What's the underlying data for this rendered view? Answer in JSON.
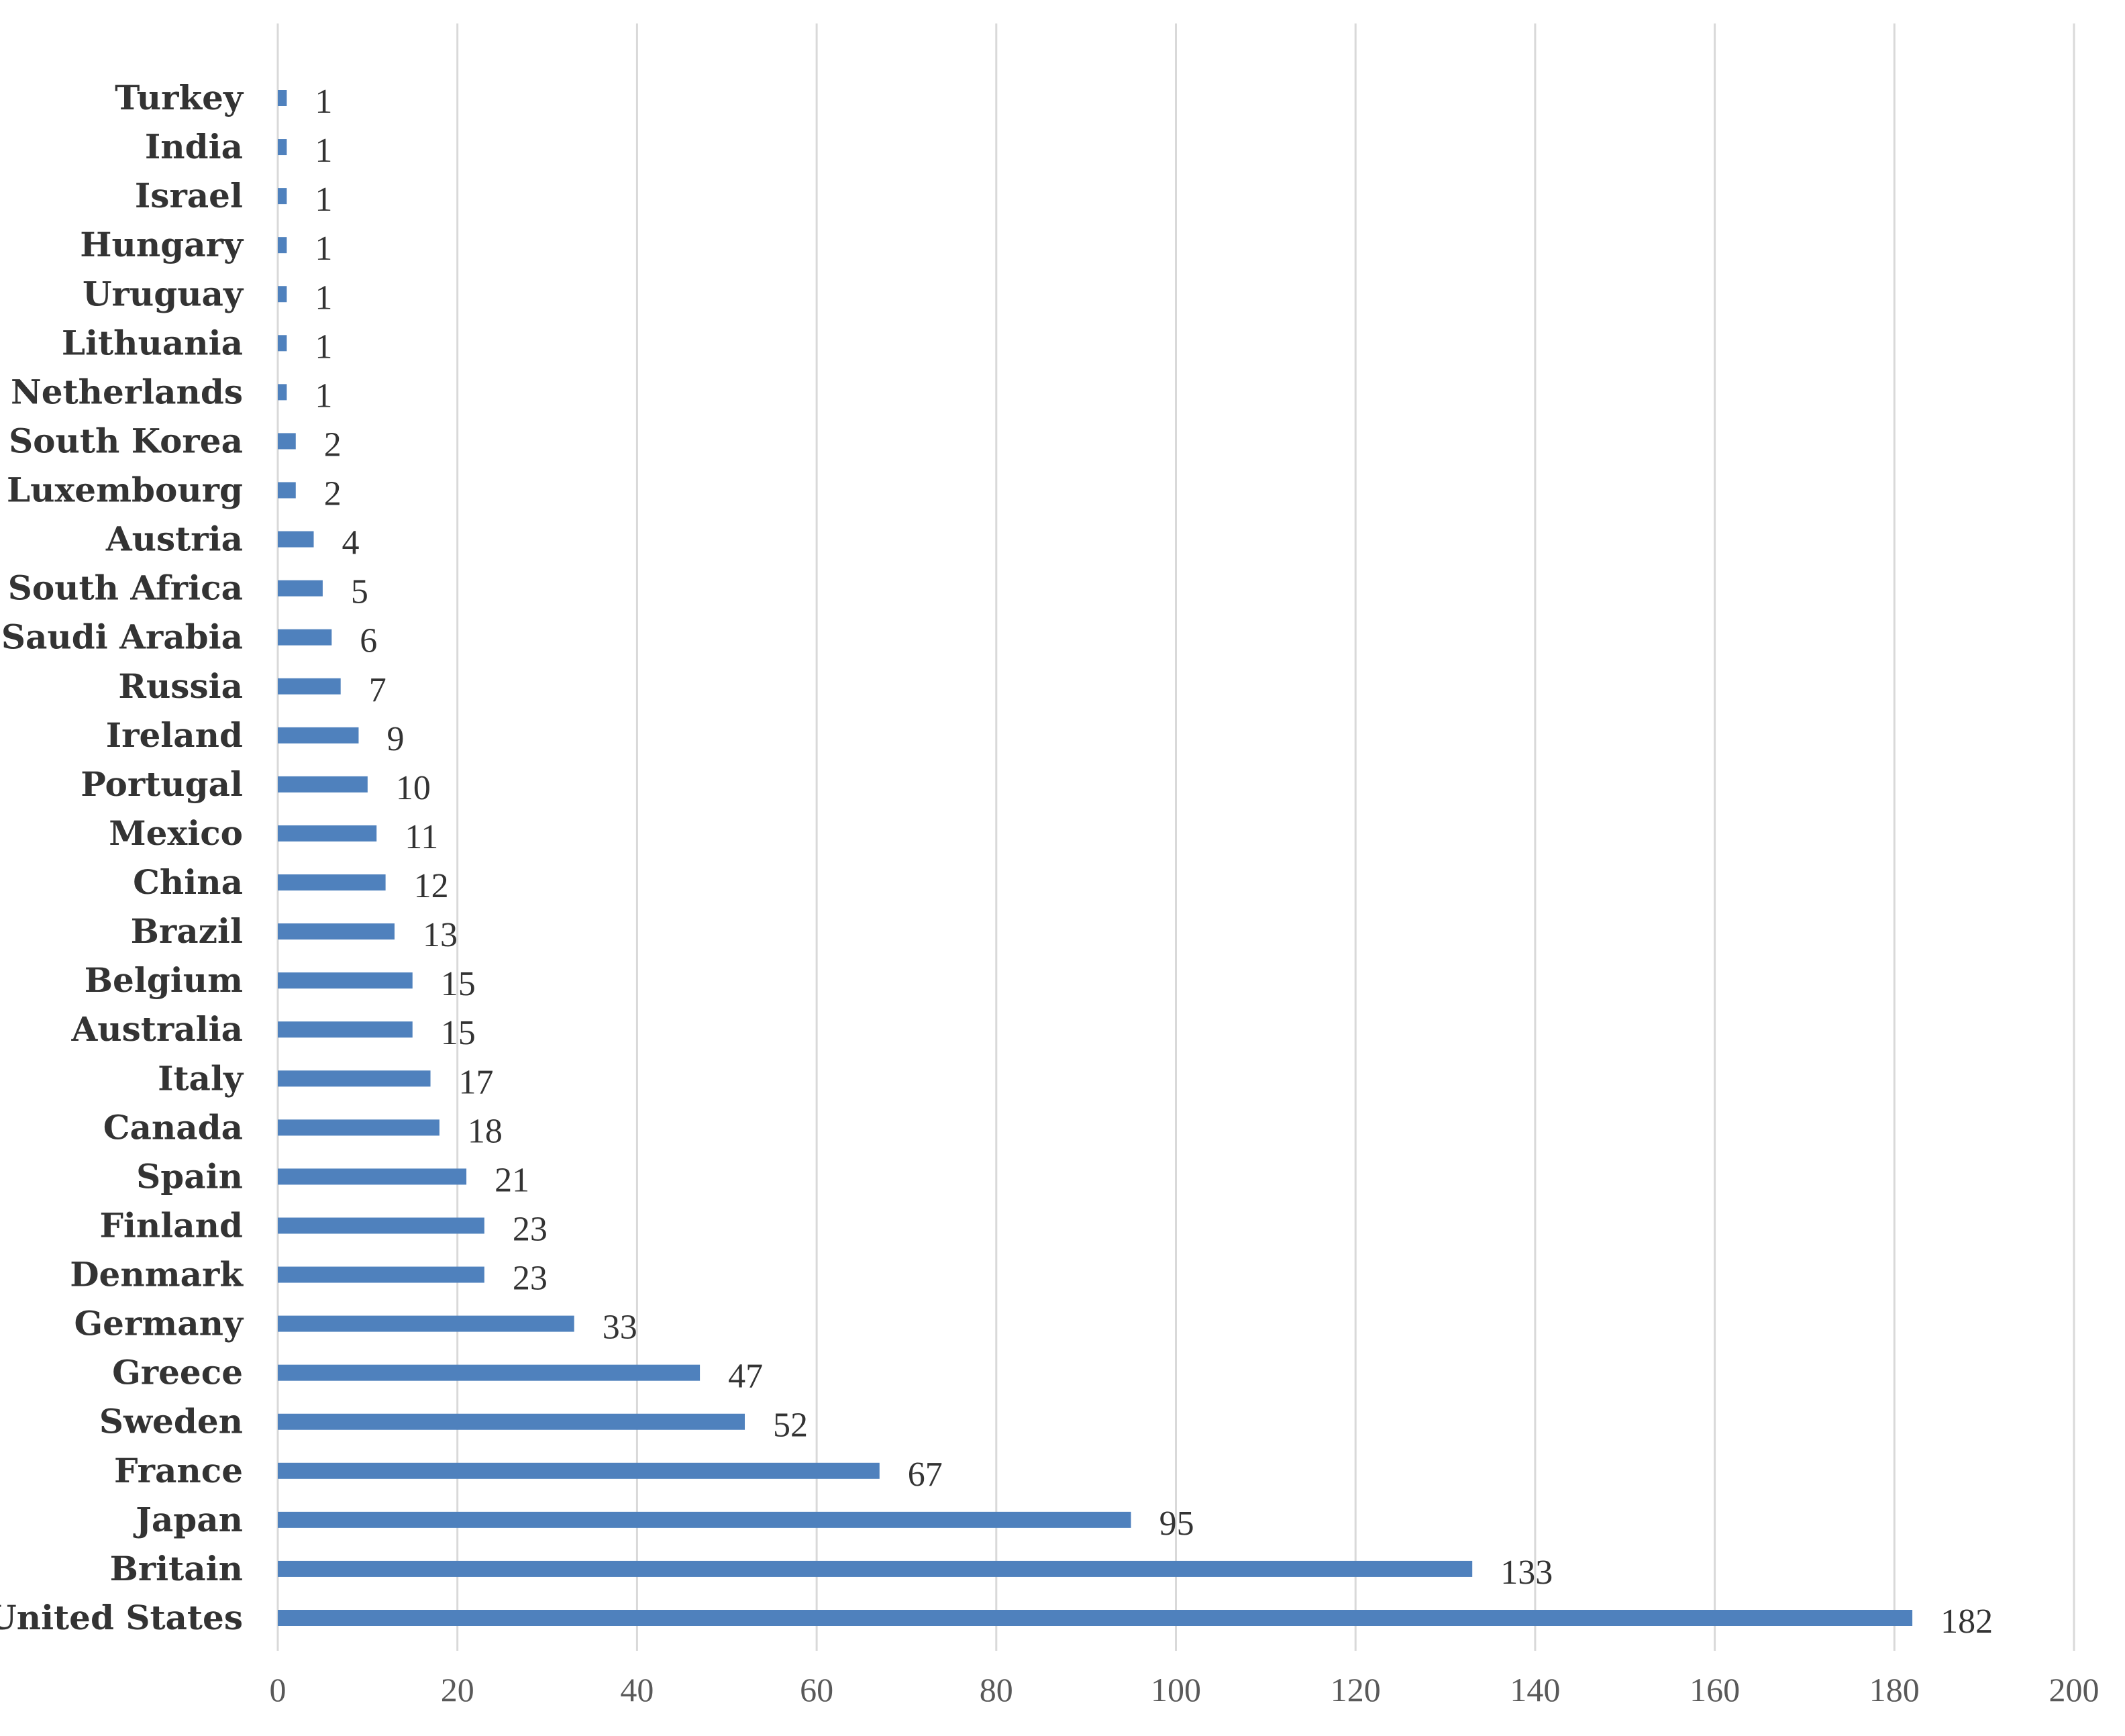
{
  "chart_data": {
    "type": "bar",
    "orientation": "horizontal",
    "categories": [
      "United States",
      "Britain",
      "Japan",
      "France",
      "Sweden",
      "Greece",
      "Germany",
      "Denmark",
      "Finland",
      "Spain",
      "Canada",
      "Italy",
      "Australia",
      "Belgium",
      "Brazil",
      "China",
      "Mexico",
      "Portugal",
      "Ireland",
      "Russia",
      "Saudi Arabia",
      "South Africa",
      "Austria",
      "Luxembourg",
      "South Korea",
      "Netherlands",
      "Lithuania",
      "Uruguay",
      "Hungary",
      "Israel",
      "India",
      "Turkey"
    ],
    "values": [
      182,
      133,
      95,
      67,
      52,
      47,
      33,
      23,
      23,
      21,
      18,
      17,
      15,
      15,
      13,
      12,
      11,
      10,
      9,
      7,
      6,
      5,
      4,
      2,
      2,
      1,
      1,
      1,
      1,
      1,
      1,
      1
    ],
    "xlim": [
      0,
      200
    ],
    "xticks": [
      "0",
      "20",
      "40",
      "60",
      "80",
      "100",
      "120",
      "140",
      "160",
      "180",
      "200"
    ],
    "grid": true,
    "data_labels": true,
    "bar_color": "#4F81BD"
  }
}
